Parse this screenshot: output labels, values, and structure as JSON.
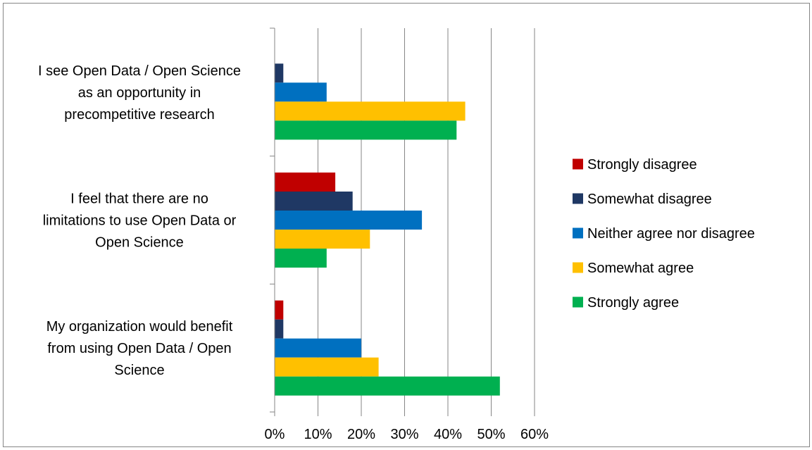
{
  "chart_data": {
    "type": "bar",
    "orientation": "horizontal",
    "categories": [
      [
        "I see Open Data / Open Science",
        "as an opportunity in",
        "precompetitive research"
      ],
      [
        "I feel that there are no",
        "limitations to use Open Data or",
        "Open Science"
      ],
      [
        "My organization would benefit",
        "from using Open Data / Open",
        "Science"
      ]
    ],
    "series": [
      {
        "name": "Strongly disagree",
        "color": "#C00000",
        "values": [
          0,
          14,
          2
        ]
      },
      {
        "name": "Somewhat disagree",
        "color": "#1F3864",
        "values": [
          2,
          18,
          2
        ]
      },
      {
        "name": "Neither agree nor disagree",
        "color": "#0070C0",
        "values": [
          12,
          34,
          20
        ]
      },
      {
        "name": "Somewhat agree",
        "color": "#FFC000",
        "values": [
          44,
          22,
          24
        ]
      },
      {
        "name": "Strongly agree",
        "color": "#00B050",
        "values": [
          42,
          12,
          52
        ]
      }
    ],
    "x_ticks": [
      "0%",
      "10%",
      "20%",
      "30%",
      "40%",
      "50%",
      "60%"
    ],
    "xlim": [
      0,
      60
    ],
    "grid": true,
    "legend_position": "right"
  }
}
